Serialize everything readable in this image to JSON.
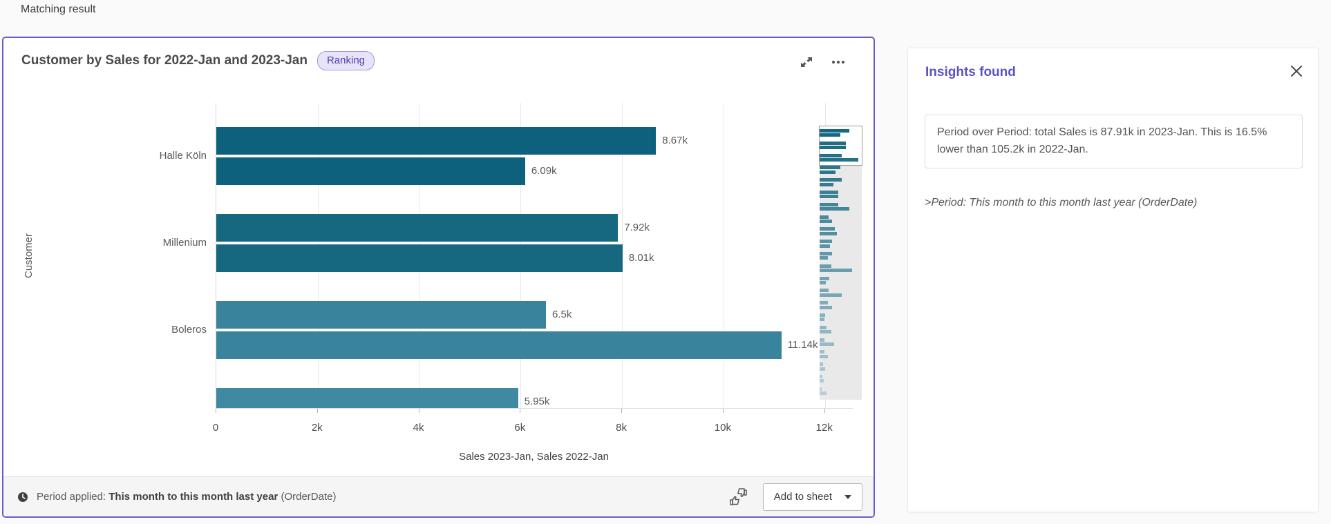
{
  "page": {
    "title": "Matching result"
  },
  "card": {
    "title": "Customer by Sales for 2022-Jan and 2023-Jan",
    "badge_label": "Ranking",
    "footer": {
      "period_label": "Period applied:",
      "period_value": "This month to this month last year",
      "period_suffix": " (OrderDate)",
      "add_to_sheet_label": "Add to sheet"
    }
  },
  "chart_data": {
    "type": "bar",
    "orientation": "horizontal",
    "title": "Customer by Sales for 2022-Jan and 2023-Jan",
    "xlabel": "Sales 2023-Jan, Sales 2022-Jan",
    "ylabel": "Customer",
    "series_names": [
      "Sales 2023-Jan",
      "Sales 2022-Jan"
    ],
    "groups": [
      {
        "category": "Halle Köln",
        "values": [
          8670,
          6090
        ],
        "labels": [
          "8.67k",
          "6.09k"
        ]
      },
      {
        "category": "Millenium",
        "values": [
          7920,
          8010
        ],
        "labels": [
          "7.92k",
          "8.01k"
        ]
      },
      {
        "category": "Boleros",
        "values": [
          6500,
          11140
        ],
        "labels": [
          "6.5k",
          "11.14k"
        ]
      },
      {
        "category": "",
        "values": [
          5950
        ],
        "labels": [
          "5.95k"
        ],
        "clipped": true
      }
    ],
    "group_colors": [
      "#0d617d",
      "#15687f",
      "#39839c",
      "#3f8aa1"
    ],
    "xticks": {
      "values": [
        0,
        2000,
        4000,
        6000,
        8000,
        10000,
        12000
      ],
      "labels": [
        "0",
        "2k",
        "4k",
        "6k",
        "8k",
        "10k",
        "12k"
      ]
    },
    "xlim": [
      0,
      12550
    ],
    "grid": true,
    "legend_position": "none"
  },
  "minimap": {
    "bg": "#e9e9e9",
    "window_border": "#9a9a9a",
    "color_start": "#15687f",
    "color_end": "#b7cdd9",
    "groups_pct": [
      [
        70,
        49
      ],
      [
        62,
        63
      ],
      [
        52,
        91
      ],
      [
        49,
        38
      ],
      [
        52,
        33
      ],
      [
        44,
        44
      ],
      [
        44,
        70
      ],
      [
        21,
        30
      ],
      [
        36,
        41
      ],
      [
        30,
        25
      ],
      [
        30,
        20
      ],
      [
        28,
        77
      ],
      [
        23,
        15
      ],
      [
        21,
        52
      ],
      [
        20,
        30
      ],
      [
        13,
        11
      ],
      [
        16,
        28
      ],
      [
        11,
        34
      ],
      [
        11,
        20
      ],
      [
        8,
        13
      ],
      [
        7,
        10
      ],
      [
        5,
        16
      ]
    ]
  },
  "insights": {
    "title": "Insights found",
    "message": "Period over Period: total Sales is 87.91k in 2023-Jan. This is 16.5% lower than 105.2k in 2022-Jan.",
    "note": ">Period: This month to this month last year (OrderDate)"
  },
  "colors": {
    "accent_purple": "#665ec8",
    "insights_title_purple": "#5a52c4",
    "badge_bg": "#e8e3f9",
    "badge_border": "#a193e0",
    "badge_text": "#4c3fae"
  }
}
